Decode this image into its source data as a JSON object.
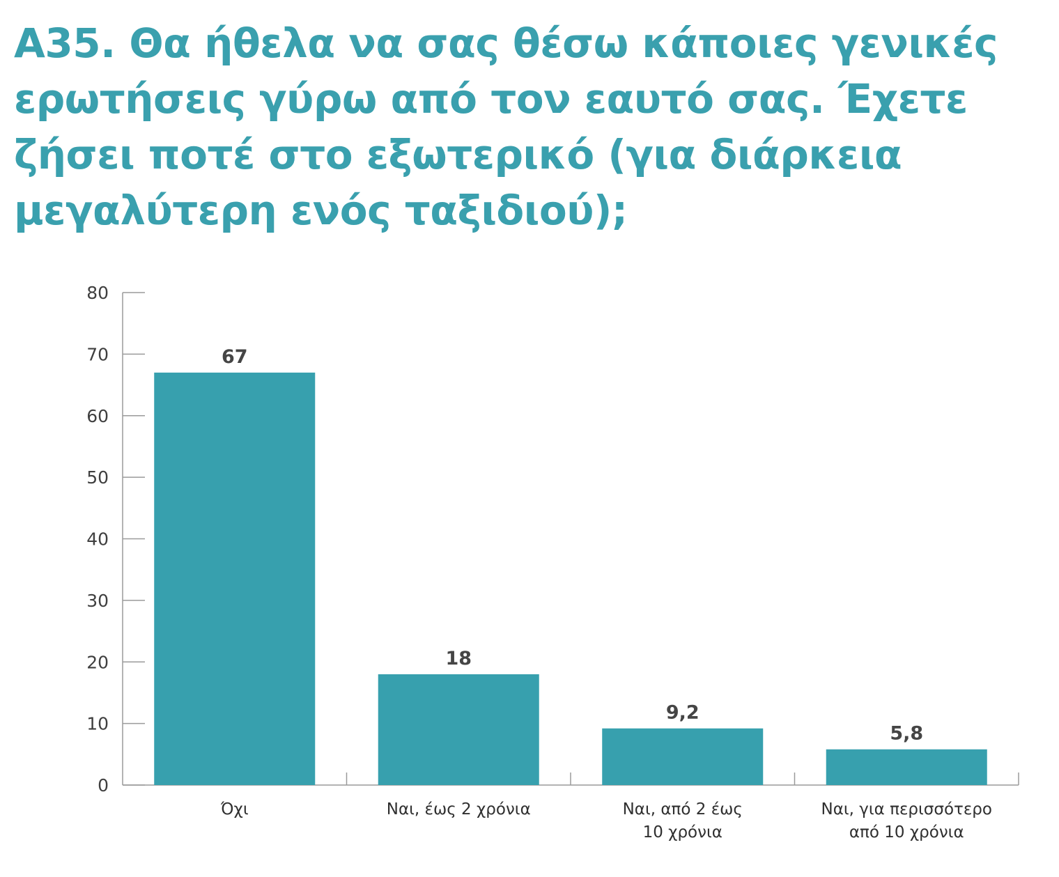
{
  "title": "Α35. Θα ήθελα να σας θέσω κάποιες γενικές ερωτήσεις γύρω από τον εαυτό σας. Έχετε ζήσει ποτέ στο εξωτερικό (για διάρκεια μεγαλύτερη ενός ταξιδιού);",
  "colors": {
    "title": "#3aa0ae",
    "bar": "#37a0ae",
    "axis": "#9a9a9a"
  },
  "chart_data": {
    "type": "bar",
    "categories": [
      [
        "Όχι"
      ],
      [
        "Ναι, έως 2 χρόνια"
      ],
      [
        "Ναι, από 2 έως",
        "10 χρόνια"
      ],
      [
        "Ναι, για περισσότερο",
        "από 10 χρόνια"
      ]
    ],
    "values": [
      67,
      18,
      9.2,
      5.8
    ],
    "value_labels": [
      "67",
      "18",
      "9,2",
      "5,8"
    ],
    "yticks": [
      0,
      10,
      20,
      30,
      40,
      50,
      60,
      70,
      80
    ],
    "ylim": [
      0,
      80
    ],
    "xlabel": "",
    "ylabel": "",
    "grid": false,
    "legend": "none"
  }
}
